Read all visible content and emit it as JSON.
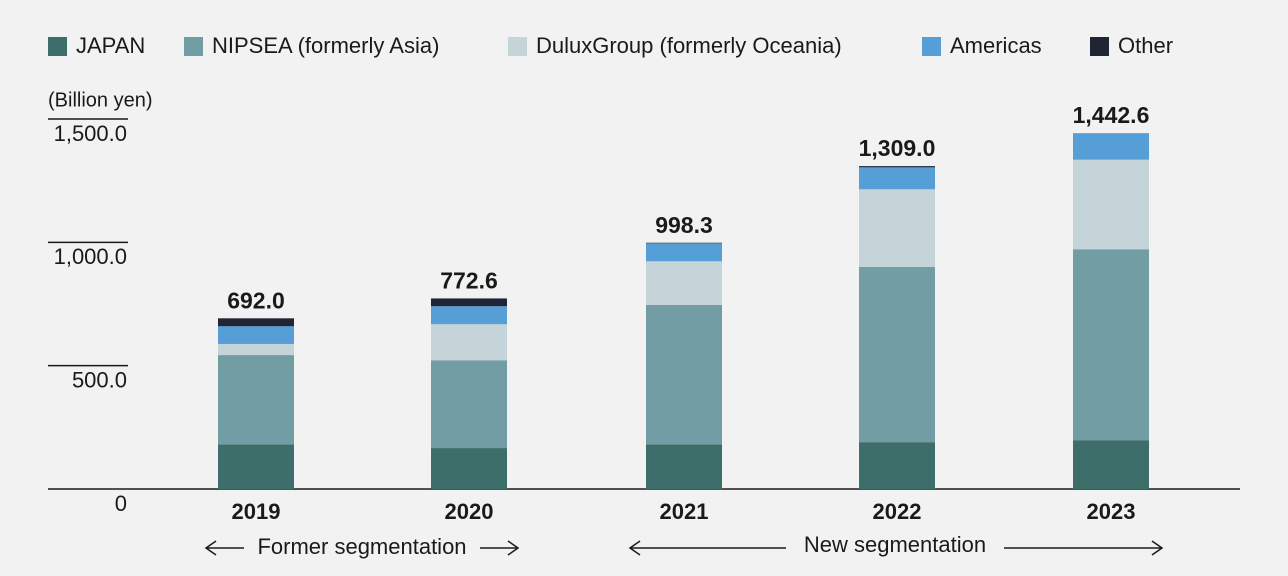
{
  "chart_data": {
    "type": "stacked-bar",
    "y_unit_label": "(Billion yen)",
    "categories": [
      "2019",
      "2020",
      "2021",
      "2022",
      "2023"
    ],
    "series": [
      {
        "name": "JAPAN",
        "color": "#3e6e6a",
        "values": [
          181,
          166,
          181,
          190,
          198
        ]
      },
      {
        "name": "NIPSEA (formerly Asia)",
        "color": "#739da4",
        "values": [
          362,
          356,
          565,
          710,
          774
        ]
      },
      {
        "name": "DuluxGroup (formerly Oceania)",
        "color": "#c5d4d9",
        "values": [
          45,
          146,
          177,
          315,
          363
        ]
      },
      {
        "name": "Americas",
        "color": "#559fd6",
        "values": [
          72,
          73,
          73,
          89,
          107.6
        ]
      },
      {
        "name": "Other",
        "color": "#1f2535",
        "values": [
          32,
          31.6,
          2.3,
          5,
          0
        ]
      }
    ],
    "totals": [
      692.0,
      772.6,
      998.3,
      1309.0,
      1442.6
    ],
    "total_labels": [
      "692.0",
      "772.6",
      "998.3",
      "1,309.0",
      "1,442.6"
    ],
    "ylim": [
      0,
      1500
    ],
    "yticks": [
      0,
      {
        "value": 500,
        "label": "500.0"
      },
      {
        "value": 1000,
        "label": "1,000.0"
      },
      {
        "value": 1500,
        "label": "1,500.0"
      }
    ],
    "annotations": [
      "Former segmentation",
      "New segmentation"
    ]
  }
}
